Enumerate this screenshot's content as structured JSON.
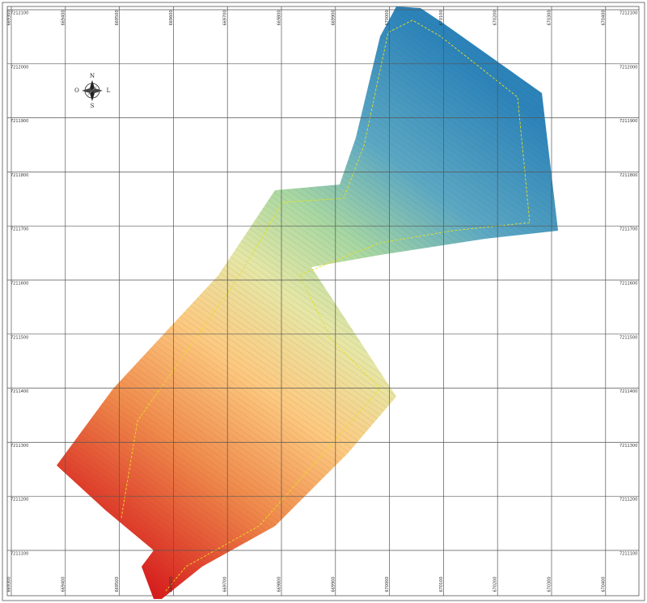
{
  "map": {
    "eastings": [
      "669300",
      "669400",
      "669500",
      "669600",
      "669700",
      "669800",
      "669900",
      "670000",
      "670100",
      "670200",
      "670300",
      "670400"
    ],
    "northings": [
      "7212100",
      "7212000",
      "7211900",
      "7211800",
      "7211700",
      "7211600",
      "7211500",
      "7211400",
      "7211300",
      "7211200",
      "7211100"
    ],
    "compass": {
      "north": "N",
      "south": "S",
      "west": "O",
      "east": "L"
    }
  }
}
